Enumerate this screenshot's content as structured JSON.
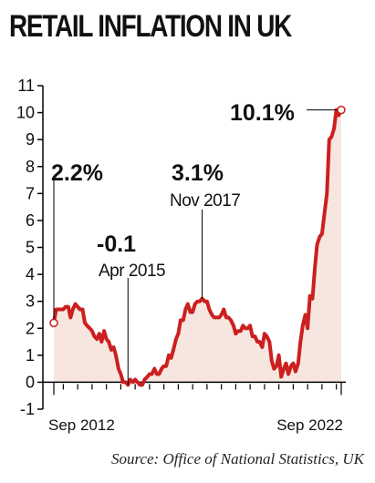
{
  "title": "RETAIL INFLATION IN UK",
  "source": "Source: Office of National Statistics, UK",
  "colors": {
    "line": "#cc1f1f",
    "fill": "#f3dcd3",
    "axis": "#000000"
  },
  "chart_data": {
    "type": "line",
    "title": "RETAIL INFLATION IN UK",
    "xlabel": "",
    "ylabel": "",
    "ylim": [
      -1,
      11
    ],
    "yticks": [
      -1,
      0,
      1,
      2,
      3,
      4,
      5,
      6,
      7,
      8,
      9,
      10,
      11
    ],
    "xtick_labels": [
      "Sep 2012",
      "Sep 2022"
    ],
    "x": [
      2012.67,
      2012.75,
      2012.83,
      2012.92,
      2013.0,
      2013.08,
      2013.17,
      2013.25,
      2013.33,
      2013.42,
      2013.5,
      2013.58,
      2013.67,
      2013.75,
      2013.83,
      2013.92,
      2014.0,
      2014.08,
      2014.17,
      2014.25,
      2014.33,
      2014.42,
      2014.5,
      2014.58,
      2014.67,
      2014.75,
      2014.83,
      2014.92,
      2015.0,
      2015.08,
      2015.17,
      2015.25,
      2015.33,
      2015.42,
      2015.5,
      2015.58,
      2015.67,
      2015.75,
      2015.83,
      2015.92,
      2016.0,
      2016.08,
      2016.17,
      2016.25,
      2016.33,
      2016.42,
      2016.5,
      2016.58,
      2016.67,
      2016.75,
      2016.83,
      2016.92,
      2017.0,
      2017.08,
      2017.17,
      2017.25,
      2017.33,
      2017.42,
      2017.5,
      2017.58,
      2017.67,
      2017.75,
      2017.83,
      2017.92,
      2018.0,
      2018.08,
      2018.17,
      2018.25,
      2018.33,
      2018.42,
      2018.5,
      2018.58,
      2018.67,
      2018.75,
      2018.83,
      2018.92,
      2019.0,
      2019.08,
      2019.17,
      2019.25,
      2019.33,
      2019.42,
      2019.5,
      2019.58,
      2019.67,
      2019.75,
      2019.83,
      2019.92,
      2020.0,
      2020.08,
      2020.17,
      2020.25,
      2020.33,
      2020.42,
      2020.5,
      2020.58,
      2020.67,
      2020.75,
      2020.83,
      2020.92,
      2021.0,
      2021.08,
      2021.17,
      2021.25,
      2021.33,
      2021.42,
      2021.5,
      2021.58,
      2021.67,
      2021.75,
      2021.83,
      2021.92,
      2022.0,
      2022.08,
      2022.17,
      2022.25,
      2022.33,
      2022.42,
      2022.5,
      2022.58,
      2022.67
    ],
    "series": [
      {
        "values": [
          2.2,
          2.7,
          2.7,
          2.7,
          2.7,
          2.8,
          2.8,
          2.4,
          2.7,
          2.9,
          2.8,
          2.7,
          2.7,
          2.2,
          2.1,
          2.0,
          1.9,
          1.7,
          1.6,
          1.8,
          1.5,
          1.9,
          1.6,
          1.5,
          1.2,
          1.3,
          1.0,
          0.5,
          0.3,
          0.0,
          0.0,
          -0.1,
          0.1,
          0.0,
          0.1,
          0.0,
          -0.1,
          -0.1,
          0.1,
          0.2,
          0.3,
          0.3,
          0.5,
          0.3,
          0.3,
          0.5,
          0.6,
          0.6,
          1.0,
          0.9,
          1.2,
          1.6,
          1.8,
          2.3,
          2.3,
          2.7,
          2.9,
          2.6,
          2.6,
          2.9,
          3.0,
          3.0,
          3.1,
          3.0,
          3.0,
          2.7,
          2.5,
          2.4,
          2.4,
          2.4,
          2.5,
          2.7,
          2.4,
          2.4,
          2.3,
          2.1,
          1.8,
          1.9,
          1.9,
          2.1,
          2.0,
          2.0,
          2.1,
          1.7,
          1.7,
          1.5,
          1.5,
          1.3,
          1.8,
          1.7,
          1.5,
          0.8,
          0.5,
          0.6,
          1.0,
          0.2,
          0.5,
          0.7,
          0.3,
          0.6,
          0.7,
          0.4,
          0.7,
          1.5,
          2.1,
          2.5,
          2.0,
          3.2,
          3.1,
          4.2,
          5.1,
          5.4,
          5.5,
          6.2,
          7.0,
          9.0,
          9.1,
          9.4,
          10.1,
          9.9,
          10.1
        ]
      }
    ],
    "annotations": [
      {
        "value": "2.2%",
        "label": "",
        "x": 2012.67,
        "y": 2.2
      },
      {
        "value": "-0.1",
        "label": "Apr 2015",
        "x": 2015.25,
        "y": -0.1
      },
      {
        "value": "3.1%",
        "label": "Nov 2017",
        "x": 2017.83,
        "y": 3.1
      },
      {
        "value": "10.1%",
        "label": "",
        "x": 2022.67,
        "y": 10.1
      }
    ],
    "grid": false,
    "legend": "none"
  }
}
